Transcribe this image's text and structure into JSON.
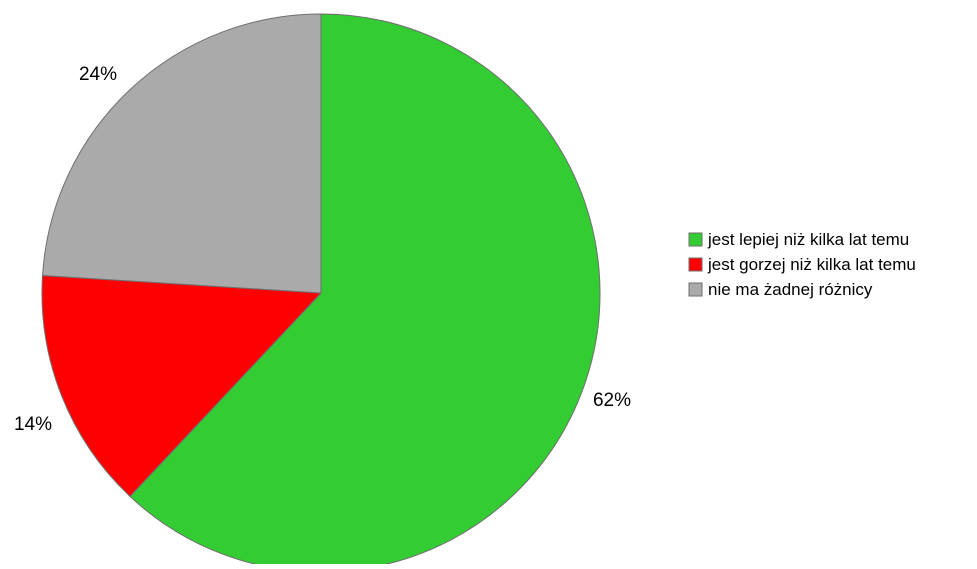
{
  "chart_data": {
    "type": "pie",
    "title": "",
    "slices": [
      {
        "label": "jest lepiej niż kilka lat temu",
        "value": 62,
        "value_label": "62%",
        "color": "#33cc33"
      },
      {
        "label": "jest gorzej niż kilka lat temu",
        "value": 14,
        "value_label": "14%",
        "color": "#ff0000"
      },
      {
        "label": "nie ma żadnej różnicy",
        "value": 24,
        "value_label": "24%",
        "color": "#aaaaaa"
      }
    ],
    "legend_position": "right"
  }
}
